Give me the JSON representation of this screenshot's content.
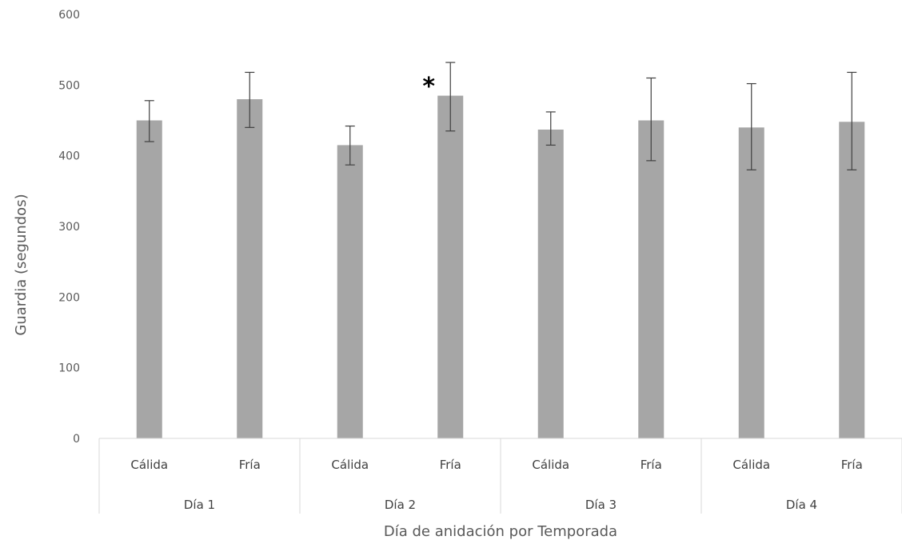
{
  "chart_data": {
    "type": "bar",
    "title": "",
    "xlabel": "Día de anidación por Temporada",
    "ylabel": "Guardia  (segundos)",
    "ylim": [
      0,
      600
    ],
    "yticks": [
      0,
      100,
      200,
      300,
      400,
      500,
      600
    ],
    "grid": false,
    "legend": "none",
    "bar_color": "#a6a6a6",
    "error_bar_color": "#404040",
    "groups": [
      {
        "label": "Día 1",
        "categories": [
          "Cálida",
          "Fría"
        ]
      },
      {
        "label": "Día 2",
        "categories": [
          "Cálida",
          "Fría"
        ]
      },
      {
        "label": "Día 3",
        "categories": [
          "Cálida",
          "Fría"
        ]
      },
      {
        "label": "Día 4",
        "categories": [
          "Cálida",
          "Fría"
        ]
      }
    ],
    "categories": [
      "Cálida",
      "Fría",
      "Cálida",
      "Fría",
      "Cálida",
      "Fría",
      "Cálida",
      "Fría"
    ],
    "values": [
      450,
      480,
      415,
      485,
      437,
      450,
      440,
      448
    ],
    "error_low": [
      420,
      440,
      387,
      435,
      415,
      393,
      380,
      380
    ],
    "error_high": [
      478,
      518,
      442,
      532,
      462,
      510,
      502,
      518
    ],
    "annotations": [
      {
        "text": "*",
        "bar_index": 3
      }
    ]
  }
}
